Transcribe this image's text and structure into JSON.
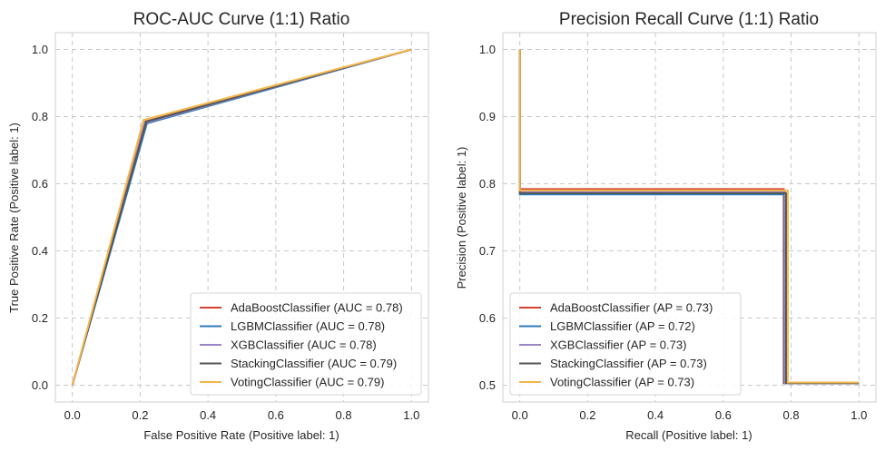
{
  "chart_data": [
    {
      "type": "line",
      "title": "ROC-AUC Curve (1:1) Ratio",
      "xlabel": "False Positive Rate (Positive label: 1)",
      "ylabel": "True Positive Rate (Positive label: 1)",
      "xlim": [
        -0.05,
        1.05
      ],
      "ylim": [
        -0.05,
        1.05
      ],
      "xticks": [
        0.0,
        0.2,
        0.4,
        0.6,
        0.8,
        1.0
      ],
      "xtick_labels": [
        "0.0",
        "0.2",
        "0.4",
        "0.6",
        "0.8",
        "1.0"
      ],
      "yticks": [
        0.0,
        0.2,
        0.4,
        0.6,
        0.8,
        1.0
      ],
      "ytick_labels": [
        "0.0",
        "0.2",
        "0.4",
        "0.6",
        "0.8",
        "1.0"
      ],
      "grid": true,
      "legend_position": "lower-right",
      "series": [
        {
          "name": "AdaBoostClassifier (AUC = 0.78)",
          "color": "#d1432c",
          "x": [
            0.0,
            0.215,
            1.0
          ],
          "y": [
            0.0,
            0.785,
            1.0
          ]
        },
        {
          "name": "LGBMClassifier (AUC = 0.78)",
          "color": "#2f7ab8",
          "x": [
            0.0,
            0.22,
            1.0
          ],
          "y": [
            0.0,
            0.78,
            1.0
          ]
        },
        {
          "name": "XGBClassifier (AUC = 0.78)",
          "color": "#9b86c9",
          "x": [
            0.0,
            0.215,
            1.0
          ],
          "y": [
            0.0,
            0.782,
            1.0
          ]
        },
        {
          "name": "StackingClassifier (AUC = 0.79)",
          "color": "#555555",
          "x": [
            0.0,
            0.218,
            1.0
          ],
          "y": [
            0.0,
            0.785,
            1.0
          ]
        },
        {
          "name": "VotingClassifier (AUC = 0.79)",
          "color": "#f4b64a",
          "x": [
            0.0,
            0.21,
            1.0
          ],
          "y": [
            0.0,
            0.79,
            1.0
          ]
        }
      ]
    },
    {
      "type": "line",
      "title": "Precision Recall Curve (1:1) Ratio",
      "xlabel": "Recall (Positive label: 1)",
      "ylabel": "Precision (Positive label: 1)",
      "xlim": [
        -0.05,
        1.05
      ],
      "ylim": [
        0.475,
        1.025
      ],
      "xticks": [
        0.0,
        0.2,
        0.4,
        0.6,
        0.8,
        1.0
      ],
      "xtick_labels": [
        "0.0",
        "0.2",
        "0.4",
        "0.6",
        "0.8",
        "1.0"
      ],
      "yticks": [
        0.5,
        0.6,
        0.7,
        0.8,
        0.9,
        1.0
      ],
      "ytick_labels": [
        "0.5",
        "0.6",
        "0.7",
        "0.8",
        "0.9",
        "1.0"
      ],
      "grid": true,
      "legend_position": "lower-left",
      "series": [
        {
          "name": "AdaBoostClassifier (AP = 0.73)",
          "color": "#d1432c",
          "x": [
            0.0,
            0.0,
            0.778,
            0.778,
            1.0
          ],
          "y": [
            1.0,
            0.792,
            0.792,
            0.503,
            0.503
          ]
        },
        {
          "name": "LGBMClassifier (AP = 0.72)",
          "color": "#2f7ab8",
          "x": [
            0.0,
            0.0,
            0.78,
            0.78,
            1.0
          ],
          "y": [
            1.0,
            0.784,
            0.784,
            0.503,
            0.503
          ]
        },
        {
          "name": "XGBClassifier (AP = 0.73)",
          "color": "#9b86c9",
          "x": [
            0.0,
            0.0,
            0.782,
            0.782,
            1.0
          ],
          "y": [
            1.0,
            0.788,
            0.788,
            0.503,
            0.503
          ]
        },
        {
          "name": "StackingClassifier (AP = 0.73)",
          "color": "#555555",
          "x": [
            0.0,
            0.0,
            0.785,
            0.785,
            1.0
          ],
          "y": [
            1.0,
            0.786,
            0.786,
            0.503,
            0.503
          ]
        },
        {
          "name": "VotingClassifier (AP = 0.73)",
          "color": "#f4b64a",
          "x": [
            0.0,
            0.0,
            0.79,
            0.79,
            1.0
          ],
          "y": [
            1.0,
            0.79,
            0.79,
            0.504,
            0.504
          ]
        }
      ]
    }
  ]
}
